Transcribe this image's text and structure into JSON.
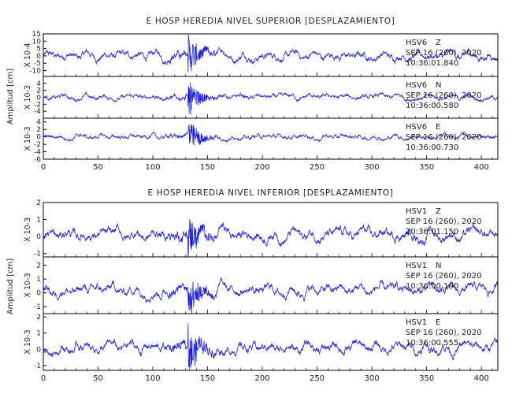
{
  "colors": {
    "trace": "#1f1fd6",
    "axis": "#000000",
    "text": "#222222"
  },
  "chart_data": {
    "type": "line",
    "x_ticks": [
      0,
      50,
      100,
      150,
      200,
      250,
      300,
      350,
      400
    ],
    "xlim": [
      0,
      415
    ],
    "panels": [
      {
        "title": "E HOSP HEREDIA NIVEL SUPERIOR [DESPLAZAMIENTO]",
        "ylabel": "Amplitud [cm]",
        "channels": [
          {
            "scale": "X 10-4",
            "station": "HSV6",
            "component": "Z",
            "date": "SEP 16 (260), 2020",
            "time": "10:36:01.840",
            "ylim": [
              -14,
              15
            ],
            "y_ticks": [
              "15",
              "10",
              "5",
              "0",
              "-5",
              "-10"
            ],
            "tick_values": [
              15,
              10,
              5,
              0,
              -5,
              -10
            ],
            "baseline": 0,
            "noise": 3,
            "event_amp": 13
          },
          {
            "scale": "X 10-3",
            "station": "HSV6",
            "component": "N",
            "date": "SEP 16 (260), 2020",
            "time": "10:36:00.580",
            "ylim": [
              -6,
              6
            ],
            "y_ticks": [
              "4",
              "2",
              "0",
              "-2",
              "-4"
            ],
            "tick_values": [
              4,
              2,
              0,
              -2,
              -4
            ],
            "baseline": 0,
            "noise": 0.8,
            "event_amp": 5
          },
          {
            "scale": "X 10-3",
            "station": "HSV6",
            "component": "E",
            "date": "SEP 16 (260), 2020",
            "time": "10:36:00.730",
            "ylim": [
              -6,
              5
            ],
            "y_ticks": [
              "4",
              "2",
              "0",
              "-2",
              "-4",
              "-6"
            ],
            "tick_values": [
              4,
              2,
              0,
              -2,
              -4,
              -6
            ],
            "baseline": 0,
            "noise": 0.7,
            "event_amp": 4.5
          }
        ]
      },
      {
        "title": "E HOSP HEREDIA NIVEL INFERIOR [DESPLAZAMIENTO]",
        "ylabel": "Amplitud [cm]",
        "channels": [
          {
            "scale": "X 10-3",
            "station": "HSV1",
            "component": "Z",
            "date": "SEP 16 (260), 2020",
            "time": "10:36:01.150",
            "ylim": [
              -1.2,
              2
            ],
            "y_ticks": [
              "2",
              "1",
              "0",
              "-1"
            ],
            "tick_values": [
              2,
              1,
              0,
              -1
            ],
            "baseline": 0.1,
            "noise": 0.35,
            "event_amp": 1.1
          },
          {
            "scale": "X 10-3",
            "station": "HSV1",
            "component": "N",
            "date": "SEP 16 (260), 2020",
            "time": "10:36:00.190",
            "ylim": [
              -1.5,
              2.6
            ],
            "y_ticks": [
              "2",
              "1",
              "0",
              "-1"
            ],
            "tick_values": [
              2,
              1,
              0,
              -1
            ],
            "baseline": 0.2,
            "noise": 0.4,
            "event_amp": 1.6
          },
          {
            "scale": "X 10-3",
            "station": "HSV1",
            "component": "E",
            "date": "SEP 16 (260), 2020",
            "time": "10:36:00.555",
            "ylim": [
              -1.3,
              2.2
            ],
            "y_ticks": [
              "2",
              "1",
              "0",
              "-1"
            ],
            "tick_values": [
              2,
              1,
              0,
              -1
            ],
            "baseline": 0.1,
            "noise": 0.35,
            "event_amp": 1.4
          }
        ]
      }
    ]
  }
}
